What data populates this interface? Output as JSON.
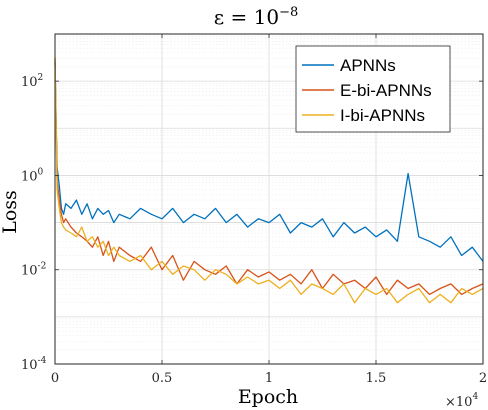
{
  "chart_data": {
    "type": "line",
    "title": "ε = 10",
    "title_exponent": "−8",
    "xlabel": "Epoch",
    "ylabel": "Loss",
    "x_multiplier_base": "×10",
    "x_multiplier_exp": "4",
    "xlim": [
      0,
      20000
    ],
    "ylim": [
      0.0001,
      1000
    ],
    "yscale": "log",
    "grid": true,
    "legend_position": "top-right",
    "x_ticks": [
      {
        "value": 0,
        "label": "0"
      },
      {
        "value": 5000,
        "label": "0.5"
      },
      {
        "value": 10000,
        "label": "1"
      },
      {
        "value": 15000,
        "label": "1.5"
      },
      {
        "value": 20000,
        "label": "2"
      }
    ],
    "y_ticks": [
      {
        "value": 0.0001,
        "base": "10",
        "exp": "-4"
      },
      {
        "value": 0.01,
        "base": "10",
        "exp": "-2"
      },
      {
        "value": 1,
        "base": "10",
        "exp": "0"
      },
      {
        "value": 100,
        "base": "10",
        "exp": "2"
      }
    ],
    "x": [
      0,
      100,
      200,
      300,
      400,
      500,
      750,
      1000,
      1250,
      1500,
      1750,
      2000,
      2250,
      2500,
      2750,
      3000,
      3500,
      4000,
      4500,
      5000,
      5500,
      6000,
      6500,
      7000,
      7500,
      8000,
      8500,
      9000,
      9500,
      10000,
      10500,
      11000,
      11500,
      12000,
      12500,
      13000,
      13500,
      14000,
      14500,
      15000,
      15500,
      16000,
      16500,
      17000,
      17500,
      18000,
      18500,
      19000,
      19500,
      20000
    ],
    "series": [
      {
        "name": "APNNs",
        "color": "#0072BD",
        "values": [
          250,
          1.5,
          0.6,
          0.2,
          0.15,
          0.25,
          0.2,
          0.3,
          0.15,
          0.25,
          0.12,
          0.2,
          0.15,
          0.18,
          0.1,
          0.15,
          0.12,
          0.2,
          0.15,
          0.12,
          0.2,
          0.1,
          0.15,
          0.12,
          0.2,
          0.1,
          0.15,
          0.08,
          0.12,
          0.1,
          0.15,
          0.06,
          0.1,
          0.08,
          0.12,
          0.05,
          0.1,
          0.06,
          0.08,
          0.05,
          0.07,
          0.04,
          1.1,
          0.05,
          0.04,
          0.03,
          0.05,
          0.02,
          0.03,
          0.015
        ]
      },
      {
        "name": "E-bi-APNNs",
        "color": "#D95319",
        "values": [
          300,
          0.8,
          0.3,
          0.15,
          0.1,
          0.12,
          0.08,
          0.06,
          0.05,
          0.04,
          0.03,
          0.05,
          0.02,
          0.04,
          0.015,
          0.03,
          0.02,
          0.015,
          0.03,
          0.01,
          0.02,
          0.006,
          0.015,
          0.01,
          0.008,
          0.012,
          0.005,
          0.01,
          0.007,
          0.009,
          0.006,
          0.008,
          0.005,
          0.01,
          0.004,
          0.008,
          0.005,
          0.006,
          0.004,
          0.007,
          0.003,
          0.006,
          0.004,
          0.005,
          0.003,
          0.004,
          0.005,
          0.003,
          0.004,
          0.005
        ]
      },
      {
        "name": "I-bi-APNNs",
        "color": "#EDB120",
        "values": [
          320,
          0.5,
          0.2,
          0.1,
          0.08,
          0.07,
          0.06,
          0.05,
          0.08,
          0.04,
          0.05,
          0.03,
          0.04,
          0.02,
          0.03,
          0.02,
          0.015,
          0.02,
          0.01,
          0.015,
          0.008,
          0.012,
          0.01,
          0.006,
          0.01,
          0.008,
          0.005,
          0.007,
          0.005,
          0.006,
          0.004,
          0.006,
          0.003,
          0.005,
          0.004,
          0.003,
          0.005,
          0.002,
          0.004,
          0.003,
          0.004,
          0.002,
          0.003,
          0.004,
          0.002,
          0.003,
          0.002,
          0.004,
          0.003,
          0.004
        ]
      }
    ]
  }
}
